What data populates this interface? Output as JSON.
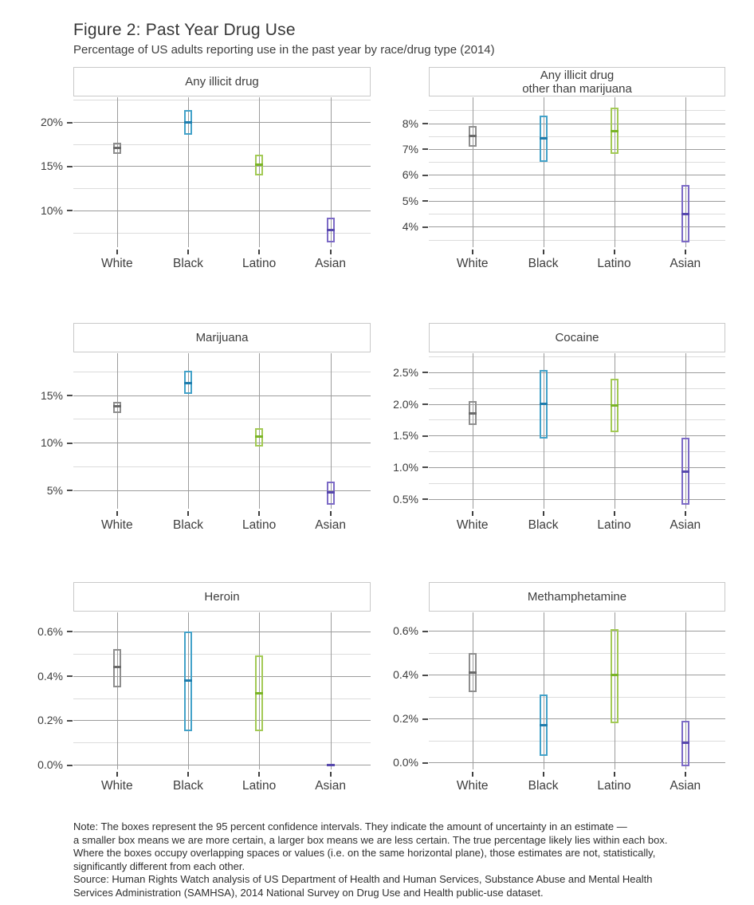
{
  "figure": {
    "title": "Figure 2: Past Year Drug Use",
    "subtitle": "Percentage of US adults reporting use in the past year by race/drug type (2014)"
  },
  "categories": [
    "White",
    "Black",
    "Latino",
    "Asian"
  ],
  "colors": {
    "White": {
      "border": "#8e8e8e",
      "median": "#6a6a6a"
    },
    "Black": {
      "border": "#43a2c9",
      "median": "#1f7dad"
    },
    "Latino": {
      "border": "#a3ca55",
      "median": "#7ab427"
    },
    "Asian": {
      "border": "#7c6ac6",
      "median": "#5748ad"
    }
  },
  "grid": {
    "major_color": "#9c9c9c",
    "minor_color": "#dcdcdc"
  },
  "chart_data": [
    {
      "type": "boxplot",
      "title": "Any illicit drug",
      "ylim": [
        6.1,
        22.8
      ],
      "yticks_major": [
        {
          "value": 10,
          "label": "10%"
        },
        {
          "value": 15,
          "label": "15%"
        },
        {
          "value": 20,
          "label": "20%"
        }
      ],
      "yticks_minor": [
        7.5,
        12.5,
        17.5,
        22.5
      ],
      "boxes": [
        {
          "category": "White",
          "low": 16.4,
          "median": 17.1,
          "high": 17.7
        },
        {
          "category": "Black",
          "low": 18.6,
          "median": 20.0,
          "high": 21.4
        },
        {
          "category": "Latino",
          "low": 14.0,
          "median": 15.2,
          "high": 16.3
        },
        {
          "category": "Asian",
          "low": 6.4,
          "median": 7.8,
          "high": 9.2
        }
      ]
    },
    {
      "type": "boxplot",
      "title": "Any illicit drug\nother than marijuana",
      "ylim": [
        3.3,
        9.0
      ],
      "yticks_major": [
        {
          "value": 4,
          "label": "4%"
        },
        {
          "value": 5,
          "label": "5%"
        },
        {
          "value": 6,
          "label": "6%"
        },
        {
          "value": 7,
          "label": "7%"
        },
        {
          "value": 8,
          "label": "8%"
        }
      ],
      "yticks_minor": [
        3.5,
        4.5,
        5.5,
        6.5,
        7.5,
        8.5
      ],
      "boxes": [
        {
          "category": "White",
          "low": 7.1,
          "median": 7.5,
          "high": 7.9
        },
        {
          "category": "Black",
          "low": 6.5,
          "median": 7.4,
          "high": 8.3
        },
        {
          "category": "Latino",
          "low": 6.8,
          "median": 7.7,
          "high": 8.6
        },
        {
          "category": "Asian",
          "low": 3.4,
          "median": 4.5,
          "high": 5.6
        }
      ]
    },
    {
      "type": "boxplot",
      "title": "Marijuana",
      "ylim": [
        3.3,
        19.4
      ],
      "yticks_major": [
        {
          "value": 5,
          "label": "5%"
        },
        {
          "value": 10,
          "label": "10%"
        },
        {
          "value": 15,
          "label": "15%"
        }
      ],
      "yticks_minor": [
        7.5,
        12.5,
        17.5
      ],
      "boxes": [
        {
          "category": "White",
          "low": 13.1,
          "median": 13.8,
          "high": 14.3
        },
        {
          "category": "Black",
          "low": 15.1,
          "median": 16.3,
          "high": 17.6
        },
        {
          "category": "Latino",
          "low": 9.6,
          "median": 10.6,
          "high": 11.5
        },
        {
          "category": "Asian",
          "low": 3.5,
          "median": 4.8,
          "high": 5.9
        }
      ]
    },
    {
      "type": "boxplot",
      "title": "Cocaine",
      "ylim": [
        0.38,
        2.8
      ],
      "yticks_major": [
        {
          "value": 0.5,
          "label": "0.5%"
        },
        {
          "value": 1.0,
          "label": "1.0%"
        },
        {
          "value": 1.5,
          "label": "1.5%"
        },
        {
          "value": 2.0,
          "label": "2.0%"
        },
        {
          "value": 2.5,
          "label": "2.5%"
        }
      ],
      "yticks_minor": [
        0.75,
        1.25,
        1.75,
        2.25,
        2.75
      ],
      "boxes": [
        {
          "category": "White",
          "low": 1.66,
          "median": 1.85,
          "high": 2.05
        },
        {
          "category": "Black",
          "low": 1.45,
          "median": 2.0,
          "high": 2.54
        },
        {
          "category": "Latino",
          "low": 1.55,
          "median": 1.98,
          "high": 2.4
        },
        {
          "category": "Asian",
          "low": 0.4,
          "median": 0.93,
          "high": 1.46
        }
      ]
    },
    {
      "type": "boxplot",
      "title": "Heroin",
      "ylim": [
        -0.01,
        0.685
      ],
      "yticks_major": [
        {
          "value": 0.0,
          "label": "0.0%"
        },
        {
          "value": 0.2,
          "label": "0.2%"
        },
        {
          "value": 0.4,
          "label": "0.4%"
        },
        {
          "value": 0.6,
          "label": "0.6%"
        }
      ],
      "yticks_minor": [
        0.1,
        0.3,
        0.5
      ],
      "boxes": [
        {
          "category": "White",
          "low": 0.35,
          "median": 0.44,
          "high": 0.52
        },
        {
          "category": "Black",
          "low": 0.15,
          "median": 0.38,
          "high": 0.6
        },
        {
          "category": "Latino",
          "low": 0.15,
          "median": 0.32,
          "high": 0.49
        },
        {
          "category": "Asian",
          "low": 0.0,
          "median": 0.0,
          "high": 0.0
        }
      ]
    },
    {
      "type": "boxplot",
      "title": "Methamphetamine",
      "ylim": [
        -0.022,
        0.685
      ],
      "yticks_major": [
        {
          "value": 0.0,
          "label": "0.0%"
        },
        {
          "value": 0.2,
          "label": "0.2%"
        },
        {
          "value": 0.4,
          "label": "0.4%"
        },
        {
          "value": 0.6,
          "label": "0.6%"
        }
      ],
      "yticks_minor": [
        0.1,
        0.3,
        0.5
      ],
      "boxes": [
        {
          "category": "White",
          "low": 0.32,
          "median": 0.41,
          "high": 0.5
        },
        {
          "category": "Black",
          "low": 0.03,
          "median": 0.17,
          "high": 0.31
        },
        {
          "category": "Latino",
          "low": 0.18,
          "median": 0.4,
          "high": 0.61
        },
        {
          "category": "Asian",
          "low": -0.02,
          "median": 0.09,
          "high": 0.19
        }
      ]
    }
  ],
  "note_lines": [
    "Note: The boxes represent the 95 percent confidence intervals. They indicate the amount of uncertainty in an estimate —",
    "a smaller box means we are more certain, a larger box means we are less certain. The true percentage likely lies within each box.",
    "Where the boxes occupy overlapping spaces or values (i.e. on the same horizontal plane), those estimates are not, statistically,",
    "significantly different from each other.",
    "Source: Human Rights Watch analysis of US Department of Health and Human Services, Substance Abuse and Mental Health",
    "Services Administration (SAMHSA), 2014 National Survey on Drug Use and Health public-use dataset."
  ]
}
